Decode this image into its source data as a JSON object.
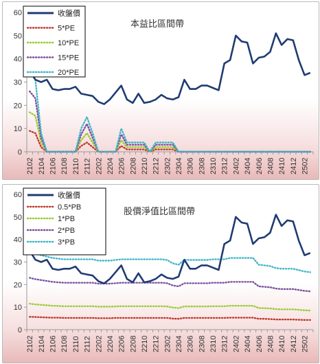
{
  "colors": {
    "close": "#1f3b73",
    "pe5": "#c0392b",
    "pe10": "#9acd32",
    "pe15": "#7b4fa0",
    "pe20": "#3fb6c8",
    "pb05": "#c0392b",
    "pb1": "#9acd32",
    "pb2": "#7b4fa0",
    "pb3": "#3fb6c8"
  },
  "chart_data": [
    {
      "type": "line",
      "title": "本益比區間帶",
      "categories": [
        "2102",
        "2103",
        "2104",
        "2105",
        "2106",
        "2107",
        "2108",
        "2109",
        "2110",
        "2111",
        "2112",
        "2201",
        "2202",
        "2203",
        "2204",
        "2205",
        "2206",
        "2207",
        "2208",
        "2209",
        "2210",
        "2211",
        "2212",
        "2301",
        "2302",
        "2303",
        "2304",
        "2305",
        "2306",
        "2307",
        "2308",
        "2309",
        "2310",
        "2311",
        "2312",
        "2401",
        "2402",
        "2403",
        "2404",
        "2405",
        "2406",
        "2407",
        "2408",
        "2409",
        "2410",
        "2411",
        "2412",
        "2501",
        "2502",
        "2503"
      ],
      "tick_labels": [
        "2102",
        "2104",
        "2106",
        "2108",
        "2110",
        "2112",
        "2202",
        "2204",
        "2206",
        "2208",
        "2210",
        "2212",
        "2302",
        "2304",
        "2306",
        "2308",
        "2310",
        "2312",
        "2402",
        "2404",
        "2406",
        "2408",
        "2410",
        "2412",
        "2502"
      ],
      "ylim": [
        0,
        60
      ],
      "yticks": [
        0,
        10,
        20,
        30,
        40,
        50,
        60
      ],
      "legend_position": "top-left",
      "grid": false,
      "series": [
        {
          "name": "收盤價",
          "color_key": "close",
          "style": "solid",
          "values": [
            35,
            31,
            30,
            31,
            27,
            26.5,
            27,
            27,
            28,
            25,
            24.5,
            24,
            21.5,
            20.5,
            22.5,
            25.5,
            28.5,
            22.5,
            21,
            25,
            21,
            21.5,
            22.5,
            24.5,
            23,
            22.5,
            23.5,
            31,
            27,
            27,
            28.5,
            28.5,
            27.5,
            26.5,
            38,
            39.5,
            50,
            47.5,
            47,
            38,
            40.5,
            41,
            43,
            51,
            46,
            48.5,
            48,
            39.5,
            33,
            34
          ]
        },
        {
          "name": "5*PE",
          "color_key": "pe5",
          "style": "dotted",
          "values": [
            9,
            8,
            2,
            0,
            0,
            0,
            0,
            0,
            0,
            2.5,
            4,
            2,
            0,
            0,
            0,
            0,
            2.5,
            1,
            1,
            1,
            1,
            0,
            1,
            1,
            1,
            1,
            0,
            0,
            0,
            0,
            0,
            0,
            0,
            0,
            0,
            0,
            0,
            0,
            0,
            0,
            0,
            0,
            0,
            0,
            0,
            0,
            0,
            0,
            0,
            0
          ]
        },
        {
          "name": "10*PE",
          "color_key": "pe10",
          "style": "dotted",
          "values": [
            17,
            15.5,
            4,
            0,
            0,
            0,
            0,
            0,
            0,
            5,
            8,
            4,
            0,
            0,
            0,
            0,
            5,
            2,
            2,
            2,
            2,
            0,
            2,
            2,
            2,
            2,
            0,
            0,
            0,
            0,
            0,
            0,
            0,
            0,
            0,
            0,
            0,
            0,
            0,
            0,
            0,
            0,
            0,
            0,
            0,
            0,
            0,
            0,
            0,
            0
          ]
        },
        {
          "name": "15*PE",
          "color_key": "pe15",
          "style": "dotted",
          "values": [
            26,
            23,
            6,
            0,
            0,
            0,
            0,
            0,
            0,
            7.5,
            12,
            6,
            0,
            0,
            0,
            0,
            7.5,
            3,
            3,
            3,
            3,
            0,
            3,
            3,
            3,
            3,
            0,
            0,
            0,
            0,
            0,
            0,
            0,
            0,
            0,
            0,
            0,
            0,
            0,
            0,
            0,
            0,
            0,
            0,
            0,
            0,
            0,
            0,
            0,
            0
          ]
        },
        {
          "name": "20*PE",
          "color_key": "pe20",
          "style": "dotted",
          "values": [
            35,
            31,
            8,
            0,
            0,
            0,
            0,
            0,
            0,
            10,
            15,
            8,
            0,
            0,
            0,
            0,
            10,
            4,
            4,
            4,
            4,
            0,
            4,
            4,
            4,
            4,
            0,
            0,
            0,
            0,
            0,
            0,
            0,
            0,
            0,
            0,
            0,
            0,
            0,
            0,
            0,
            0,
            0,
            0,
            0,
            0,
            0,
            0,
            0,
            0
          ]
        }
      ]
    },
    {
      "type": "line",
      "title": "股價淨值比區間帶",
      "categories": [
        "2102",
        "2103",
        "2104",
        "2105",
        "2106",
        "2107",
        "2108",
        "2109",
        "2110",
        "2111",
        "2112",
        "2201",
        "2202",
        "2203",
        "2204",
        "2205",
        "2206",
        "2207",
        "2208",
        "2209",
        "2210",
        "2211",
        "2212",
        "2301",
        "2302",
        "2303",
        "2304",
        "2305",
        "2306",
        "2307",
        "2308",
        "2309",
        "2310",
        "2311",
        "2312",
        "2401",
        "2402",
        "2403",
        "2404",
        "2405",
        "2406",
        "2407",
        "2408",
        "2409",
        "2410",
        "2411",
        "2412",
        "2501",
        "2502",
        "2503"
      ],
      "tick_labels": [
        "2102",
        "2104",
        "2106",
        "2108",
        "2110",
        "2112",
        "2202",
        "2204",
        "2206",
        "2208",
        "2210",
        "2212",
        "2302",
        "2304",
        "2306",
        "2308",
        "2310",
        "2312",
        "2402",
        "2404",
        "2406",
        "2408",
        "2410",
        "2412",
        "2502"
      ],
      "ylim": [
        0,
        60
      ],
      "yticks": [
        0,
        10,
        20,
        30,
        40,
        50,
        60
      ],
      "legend_position": "top-left",
      "grid": false,
      "series": [
        {
          "name": "收盤價",
          "color_key": "close",
          "style": "solid",
          "values": [
            35,
            31,
            30,
            31,
            27,
            26.5,
            27,
            27,
            28,
            25,
            24.5,
            24,
            21.5,
            20.5,
            22.5,
            25.5,
            28.5,
            22.5,
            21,
            25,
            21,
            21.5,
            22.5,
            24.5,
            23,
            22.5,
            23.5,
            31,
            27,
            27,
            28.5,
            28.5,
            27.5,
            26.5,
            38,
            39.5,
            50,
            47.5,
            47,
            38,
            40.5,
            41,
            43,
            51,
            46,
            48.5,
            48,
            39.5,
            33,
            34
          ]
        },
        {
          "name": "0.5*PB",
          "color_key": "pb05",
          "style": "dotted",
          "values": [
            5.7,
            5.6,
            5.5,
            5.4,
            5.3,
            5.3,
            5.2,
            5.2,
            5.2,
            5.2,
            5.2,
            5.2,
            5.1,
            5.1,
            5.1,
            5.2,
            5.2,
            5.2,
            5.2,
            5.2,
            5.2,
            5.2,
            5.2,
            5.2,
            5.2,
            4.9,
            4.8,
            5.2,
            5.2,
            5.2,
            5.2,
            5.2,
            5.2,
            5.2,
            5.2,
            5.3,
            5.3,
            5.3,
            5.3,
            5.3,
            4.8,
            4.8,
            4.7,
            4.5,
            4.5,
            4.5,
            4.5,
            4.4,
            4.3,
            4.3
          ]
        },
        {
          "name": "1*PB",
          "color_key": "pb1",
          "style": "dotted",
          "values": [
            11.5,
            11.2,
            11.0,
            10.8,
            10.6,
            10.5,
            10.4,
            10.4,
            10.4,
            10.4,
            10.4,
            10.4,
            10.2,
            10.2,
            10.2,
            10.3,
            10.4,
            10.4,
            10.4,
            10.4,
            10.4,
            10.4,
            10.4,
            10.4,
            10.3,
            9.8,
            9.6,
            10.3,
            10.3,
            10.3,
            10.3,
            10.3,
            10.4,
            10.4,
            10.4,
            10.6,
            10.6,
            10.6,
            10.6,
            10.6,
            9.6,
            9.5,
            9.4,
            9.1,
            9.0,
            9.0,
            9.0,
            8.8,
            8.6,
            8.5
          ]
        },
        {
          "name": "2*PB",
          "color_key": "pb2",
          "style": "dotted",
          "values": [
            23,
            22.4,
            22,
            21.6,
            21.2,
            21,
            20.8,
            20.8,
            20.8,
            20.8,
            20.8,
            20.8,
            20.4,
            20.4,
            20.4,
            20.6,
            20.8,
            20.8,
            20.8,
            20.8,
            20.8,
            20.8,
            20.8,
            20.8,
            20.6,
            19.6,
            19.2,
            20.6,
            20.6,
            20.6,
            20.6,
            20.6,
            20.8,
            20.8,
            20.8,
            21.2,
            21.2,
            21.2,
            21.2,
            21.2,
            19.2,
            19.0,
            18.8,
            18.2,
            18.0,
            18.0,
            18.0,
            17.6,
            17.2,
            17.0
          ]
        },
        {
          "name": "3*PB",
          "color_key": "pb3",
          "style": "dotted",
          "values": [
            34.5,
            33.6,
            33,
            32.4,
            31.8,
            31.5,
            31.2,
            31.2,
            31.2,
            31.2,
            31.2,
            31.2,
            30.6,
            30.6,
            30.6,
            30.9,
            31.2,
            31.2,
            31.2,
            31.2,
            31.2,
            31.2,
            31.2,
            31.2,
            30.9,
            29.4,
            28.8,
            30.9,
            30.9,
            30.9,
            30.9,
            30.9,
            31.2,
            31.2,
            31.2,
            31.8,
            31.8,
            31.8,
            31.8,
            31.8,
            28.8,
            28.5,
            28.2,
            27.3,
            27.0,
            27.0,
            27.0,
            26.4,
            25.8,
            25.5
          ]
        }
      ]
    }
  ]
}
